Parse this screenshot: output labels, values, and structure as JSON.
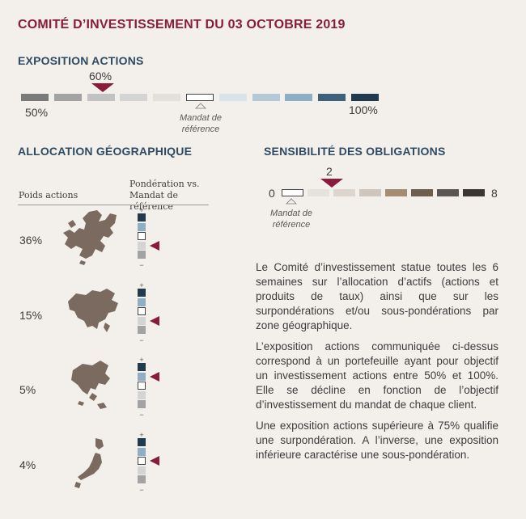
{
  "header": {
    "title": "COMITÉ D’INVESTISSEMENT  DU 03 OCTOBRE 2019"
  },
  "exposition": {
    "heading": "EXPOSITION ACTIONS",
    "min_label": "50%",
    "max_label": "100%",
    "current_label": "60%",
    "reference_label": "Mandat de référence",
    "colors": [
      "#7a7a7a",
      "#a3a3a3",
      "#c2c2c2",
      "#d4d4d4",
      "#e2e0dd",
      "#ffffff",
      "#d9e4ea",
      "#b4c8d6",
      "#8fadc3",
      "#3f5f7a",
      "#223a50"
    ]
  },
  "geo": {
    "heading": "ALLOCATION GÉOGRAPHIQUE",
    "col_weight": "Poids actions",
    "col_ponderation": "Pondération vs. Mandat de référence",
    "plus": "+",
    "minus": "−",
    "scale_colors": [
      "#223a50",
      "#8fadc3",
      "#ffffff",
      "#d4d4d4",
      "#a3a3a3"
    ],
    "regions": [
      {
        "name": "europe-map",
        "weight": "36%",
        "position": 3
      },
      {
        "name": "north-america-map",
        "weight": "15%",
        "position": 3
      },
      {
        "name": "asia-map",
        "weight": "5%",
        "position": 1
      },
      {
        "name": "japan-map",
        "weight": "4%",
        "position": 2
      }
    ]
  },
  "obligations": {
    "heading": "SENSIBILITÉ DES OBLIGATIONS",
    "min_label": "0",
    "max_label": "8",
    "current_label": "2",
    "reference_label": "Mandat de référence",
    "colors": [
      "#ffffff",
      "#e6e2dd",
      "#dcd6cf",
      "#cfc7bd",
      "#a58d74",
      "#6e5e4d",
      "#5b5553",
      "#3b3634"
    ]
  },
  "text": {
    "p1": "Le Comité d’investissement statue toutes les 6 semaines sur l’allocation d’actifs (actions et produits de taux) ainsi que sur les surpondérations et/ou sous-pondérations par zone géographique.",
    "p2": "L’exposition actions communiquée ci-dessus correspond à un portefeuille ayant pour objectif un investissement actions entre 50% et 100%. Elle se décline en fonction de l’objectif d’investissement du mandat de chaque client.",
    "p3": "Une exposition actions supérieure à 75% qualifie une surpondération. A l’inverse, une exposition inférieure caractérise une sous-pondération."
  }
}
